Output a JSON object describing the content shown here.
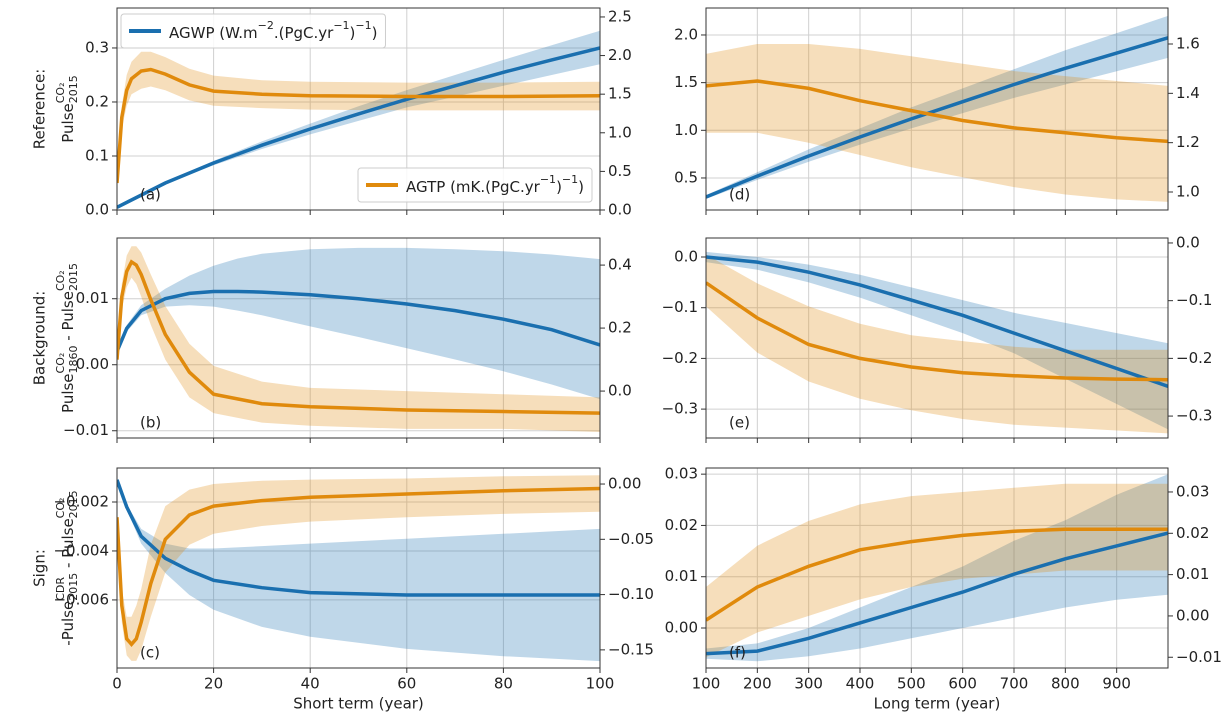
{
  "chart_data": [
    {
      "type": "line",
      "annotation": "(a)",
      "ylabel": {
        "line1": "Reference:",
        "line2": [
          {
            "text": "Pulse",
            "sup": "CO₂",
            "sub": "2015"
          }
        ]
      },
      "xlim": [
        0,
        100
      ],
      "xticks": [
        0,
        20,
        40,
        60,
        80,
        100
      ],
      "ylim": [
        0,
        0.374
      ],
      "yticks": [
        {
          "value": 0,
          "label": "0.0"
        },
        0.1,
        0.2,
        0.3
      ],
      "y2lim": [
        0,
        2.616
      ],
      "y2ticks": [
        {
          "value": 0,
          "label": "0.0"
        },
        0.5,
        {
          "value": 1,
          "label": "1.0"
        },
        1.5,
        {
          "value": 2,
          "label": "2.0"
        },
        2.5
      ],
      "grid": true,
      "series": [
        {
          "name": [
            {
              "text": "AGWP (W.m",
              "sup": "−2"
            },
            {
              "text": ".(PgC.yr",
              "sup": "−1"
            },
            {
              "text": ")",
              "sup": "−1"
            },
            {
              "text": ")"
            }
          ],
          "legend_loc": "upper left",
          "color": "#1a6faf",
          "x": [
            0,
            10,
            20,
            30,
            40,
            50,
            60,
            70,
            80,
            90,
            100
          ],
          "values": [
            0.005,
            0.05,
            0.087,
            0.12,
            0.15,
            0.178,
            0.205,
            0.23,
            0.255,
            0.278,
            0.3
          ],
          "lower": [
            0.005,
            0.048,
            0.083,
            0.113,
            0.14,
            0.165,
            0.19,
            0.21,
            0.23,
            0.25,
            0.27
          ],
          "upper": [
            0.005,
            0.052,
            0.091,
            0.127,
            0.16,
            0.192,
            0.222,
            0.25,
            0.278,
            0.305,
            0.332
          ]
        },
        {
          "name": [
            {
              "text": "AGTP (mK.(PgC.yr",
              "sup": "−1"
            },
            {
              "text": ")",
              "sup": "−1"
            },
            {
              "text": ")"
            }
          ],
          "legend_loc": "lower right",
          "color": "#e08a0c",
          "axis": "y2",
          "x": [
            0,
            1,
            2,
            3,
            5,
            7,
            10,
            15,
            20,
            30,
            40,
            60,
            80,
            100
          ],
          "values": [
            0.35,
            1.2,
            1.55,
            1.7,
            1.8,
            1.82,
            1.76,
            1.62,
            1.54,
            1.5,
            1.48,
            1.47,
            1.47,
            1.48
          ],
          "lower": [
            0.3,
            1.05,
            1.35,
            1.5,
            1.57,
            1.6,
            1.55,
            1.42,
            1.35,
            1.32,
            1.3,
            1.29,
            1.29,
            1.29
          ],
          "upper": [
            0.4,
            1.35,
            1.75,
            1.92,
            2.05,
            2.05,
            1.98,
            1.83,
            1.74,
            1.68,
            1.66,
            1.65,
            1.65,
            1.66
          ]
        }
      ]
    },
    {
      "type": "line",
      "annotation": "(b)",
      "ylabel": {
        "line1": "Background:",
        "line2": [
          {
            "text": "Pulse",
            "sup": "CO₂",
            "sub": "1860"
          },
          {
            "text": " - Pulse",
            "sup": "CO₂",
            "sub": "2015"
          }
        ]
      },
      "xlim": [
        0,
        100
      ],
      "xticks": [
        0,
        20,
        40,
        60,
        80,
        100
      ],
      "ylim": [
        -0.0111,
        0.0192
      ],
      "yticks": [
        {
          "value": -0.01,
          "label": "−0.01"
        },
        {
          "value": 0,
          "label": "0.00"
        },
        0.01
      ],
      "y2lim": [
        -0.149,
        0.486
      ],
      "y2ticks": [
        {
          "value": 0,
          "label": "0.0"
        },
        0.2,
        0.4
      ],
      "grid": true,
      "series": [
        {
          "color": "#1a6faf",
          "x": [
            0,
            2,
            5,
            10,
            15,
            20,
            25,
            30,
            40,
            50,
            60,
            70,
            80,
            90,
            100
          ],
          "values": [
            0.002,
            0.0055,
            0.0082,
            0.01,
            0.0108,
            0.0111,
            0.0111,
            0.011,
            0.0106,
            0.01,
            0.0092,
            0.0082,
            0.0069,
            0.0053,
            0.003
          ],
          "lower": [
            0.002,
            0.005,
            0.0075,
            0.0088,
            0.009,
            0.0088,
            0.0082,
            0.0075,
            0.0058,
            0.0042,
            0.0025,
            0.0008,
            -0.001,
            -0.003,
            -0.0052
          ],
          "upper": [
            0.002,
            0.006,
            0.009,
            0.0115,
            0.0135,
            0.015,
            0.0161,
            0.0168,
            0.0175,
            0.0177,
            0.0177,
            0.0175,
            0.0172,
            0.0167,
            0.016
          ]
        },
        {
          "color": "#e08a0c",
          "axis": "y2",
          "x": [
            0,
            1,
            2,
            3,
            4,
            5,
            7,
            10,
            15,
            20,
            30,
            40,
            60,
            80,
            100
          ],
          "values": [
            0.1,
            0.3,
            0.38,
            0.41,
            0.4,
            0.37,
            0.29,
            0.18,
            0.06,
            -0.01,
            -0.04,
            -0.05,
            -0.06,
            -0.065,
            -0.07
          ],
          "lower": [
            0.08,
            0.26,
            0.33,
            0.36,
            0.34,
            0.3,
            0.21,
            0.1,
            -0.02,
            -0.07,
            -0.1,
            -0.11,
            -0.12,
            -0.12,
            -0.13
          ],
          "upper": [
            0.12,
            0.34,
            0.43,
            0.46,
            0.46,
            0.44,
            0.37,
            0.27,
            0.15,
            0.08,
            0.03,
            0.01,
            0,
            -0.01,
            -0.02
          ]
        }
      ]
    },
    {
      "type": "line",
      "annotation": "(c)",
      "xlabel": "Short term (year)",
      "ylabel": {
        "line1": "Sign:",
        "line2": [
          {
            "text": "-Pulse",
            "sup": "CDR",
            "sub": "2015"
          },
          {
            "text": " - Pulse",
            "sup": "CO₂",
            "sub": "2015"
          }
        ]
      },
      "xlim": [
        0,
        100
      ],
      "xticks": [
        0,
        20,
        40,
        60,
        80,
        100
      ],
      "ylim": [
        -0.00878,
        -0.000612
      ],
      "yticks": [
        {
          "value": -0.006,
          "label": "−0.006"
        },
        {
          "value": -0.004,
          "label": "−0.004"
        },
        {
          "value": -0.002,
          "label": "−0.002"
        }
      ],
      "y2lim": [
        -0.1664,
        0.0145
      ],
      "y2ticks": [
        {
          "value": -0.15,
          "label": "−0.15"
        },
        {
          "value": -0.1,
          "label": "−0.10"
        },
        {
          "value": -0.05,
          "label": "−0.05"
        },
        {
          "value": 0,
          "label": "0.00"
        }
      ],
      "grid": true,
      "series": [
        {
          "color": "#1a6faf",
          "x": [
            0,
            2,
            5,
            10,
            15,
            20,
            30,
            40,
            60,
            80,
            100
          ],
          "values": [
            -0.0011,
            -0.0022,
            -0.0034,
            -0.0043,
            -0.0048,
            -0.0052,
            -0.0055,
            -0.0057,
            -0.0058,
            -0.0058,
            -0.0058
          ],
          "lower": [
            -0.0011,
            -0.0023,
            -0.0037,
            -0.0049,
            -0.0058,
            -0.0064,
            -0.0071,
            -0.0075,
            -0.008,
            -0.0083,
            -0.0085
          ],
          "upper": [
            -0.0011,
            -0.0021,
            -0.0031,
            -0.0037,
            -0.0039,
            -0.0039,
            -0.0038,
            -0.0037,
            -0.0035,
            -0.0033,
            -0.0031
          ]
        },
        {
          "color": "#e08a0c",
          "axis": "y2",
          "x": [
            0,
            1,
            2,
            3,
            4,
            5,
            7,
            10,
            15,
            20,
            30,
            40,
            60,
            80,
            100
          ],
          "values": [
            -0.03,
            -0.11,
            -0.14,
            -0.145,
            -0.14,
            -0.125,
            -0.09,
            -0.05,
            -0.028,
            -0.02,
            -0.015,
            -0.012,
            -0.009,
            -0.006,
            -0.004
          ],
          "lower": [
            -0.035,
            -0.125,
            -0.155,
            -0.16,
            -0.16,
            -0.15,
            -0.12,
            -0.08,
            -0.055,
            -0.045,
            -0.038,
            -0.034,
            -0.03,
            -0.027,
            -0.025
          ],
          "upper": [
            -0.025,
            -0.095,
            -0.12,
            -0.12,
            -0.11,
            -0.095,
            -0.055,
            -0.02,
            -0.005,
            0,
            0.003,
            0.004,
            0.005,
            0.007,
            0.008
          ]
        }
      ]
    },
    {
      "type": "line",
      "annotation": "(d)",
      "xlim": [
        100,
        1000
      ],
      "xticks": [
        100,
        200,
        300,
        400,
        500,
        600,
        700,
        800,
        900
      ],
      "ylim": [
        0.164,
        2.283
      ],
      "yticks": [
        0.5,
        {
          "value": 1,
          "label": "1.0"
        },
        1.5,
        {
          "value": 2,
          "label": "2.0"
        }
      ],
      "y2lim": [
        0.927,
        1.746
      ],
      "y2ticks": [
        {
          "value": 1,
          "label": "1.0"
        },
        1.2,
        1.4,
        1.6
      ],
      "grid": true,
      "series": [
        {
          "color": "#1a6faf",
          "x": [
            100,
            200,
            300,
            400,
            500,
            600,
            700,
            800,
            900,
            1000
          ],
          "values": [
            0.3,
            0.52,
            0.73,
            0.93,
            1.12,
            1.3,
            1.48,
            1.65,
            1.81,
            1.97
          ],
          "lower": [
            0.28,
            0.48,
            0.67,
            0.85,
            1.02,
            1.18,
            1.34,
            1.48,
            1.62,
            1.76
          ],
          "upper": [
            0.32,
            0.56,
            0.8,
            1.02,
            1.24,
            1.44,
            1.64,
            1.84,
            2.02,
            2.2
          ]
        },
        {
          "color": "#e08a0c",
          "axis": "y2",
          "x": [
            100,
            200,
            300,
            400,
            500,
            600,
            700,
            800,
            900,
            1000
          ],
          "values": [
            1.43,
            1.45,
            1.42,
            1.37,
            1.33,
            1.29,
            1.26,
            1.24,
            1.22,
            1.205
          ],
          "lower": [
            1.24,
            1.24,
            1.2,
            1.15,
            1.1,
            1.06,
            1.02,
            0.99,
            0.97,
            0.96
          ],
          "upper": [
            1.56,
            1.6,
            1.6,
            1.58,
            1.55,
            1.52,
            1.49,
            1.47,
            1.45,
            1.43
          ]
        }
      ]
    },
    {
      "type": "line",
      "annotation": "(e)",
      "xlim": [
        100,
        1000
      ],
      "xticks": [
        100,
        200,
        300,
        400,
        500,
        600,
        700,
        800,
        900
      ],
      "ylim": [
        -0.357,
        0.0375
      ],
      "yticks": [
        {
          "value": -0.3,
          "label": "−0.3"
        },
        {
          "value": -0.2,
          "label": "−0.2"
        },
        {
          "value": -0.1,
          "label": "−0.1"
        },
        {
          "value": 0,
          "label": "0.0"
        }
      ],
      "y2lim": [
        -0.338,
        0.0086
      ],
      "y2ticks": [
        {
          "value": -0.3,
          "label": "−0.3"
        },
        {
          "value": -0.2,
          "label": "−0.2"
        },
        {
          "value": -0.1,
          "label": "−0.1"
        },
        {
          "value": 0,
          "label": "0.0"
        }
      ],
      "grid": true,
      "series": [
        {
          "color": "#1a6faf",
          "x": [
            100,
            200,
            300,
            400,
            500,
            600,
            700,
            800,
            900,
            1000
          ],
          "values": [
            0,
            -0.01,
            -0.03,
            -0.055,
            -0.085,
            -0.115,
            -0.15,
            -0.185,
            -0.22,
            -0.255
          ],
          "lower": [
            -0.01,
            -0.025,
            -0.05,
            -0.08,
            -0.115,
            -0.15,
            -0.19,
            -0.24,
            -0.29,
            -0.34
          ],
          "upper": [
            0.01,
            0,
            -0.015,
            -0.035,
            -0.06,
            -0.085,
            -0.11,
            -0.13,
            -0.15,
            -0.17
          ]
        },
        {
          "color": "#e08a0c",
          "axis": "y2",
          "x": [
            100,
            200,
            300,
            400,
            500,
            600,
            700,
            800,
            900,
            1000
          ],
          "values": [
            -0.069,
            -0.13,
            -0.176,
            -0.2,
            -0.215,
            -0.225,
            -0.23,
            -0.234,
            -0.236,
            -0.237
          ],
          "lower": [
            -0.11,
            -0.19,
            -0.24,
            -0.27,
            -0.29,
            -0.305,
            -0.315,
            -0.32,
            -0.325,
            -0.33
          ],
          "upper": [
            -0.02,
            -0.07,
            -0.11,
            -0.14,
            -0.16,
            -0.17,
            -0.18,
            -0.185,
            -0.185,
            -0.185
          ]
        }
      ]
    },
    {
      "type": "line",
      "annotation": "(f)",
      "xlabel": "Long term (year)",
      "xlim": [
        100,
        1000
      ],
      "xticks": [
        100,
        200,
        300,
        400,
        500,
        600,
        700,
        800,
        900
      ],
      "ylim": [
        -0.0078,
        0.0312
      ],
      "yticks": [
        {
          "value": 0,
          "label": "0.00"
        },
        0.01,
        0.02,
        0.03
      ],
      "y2lim": [
        -0.0126,
        0.0358
      ],
      "y2ticks": [
        {
          "value": -0.01,
          "label": "−0.01"
        },
        {
          "value": 0,
          "label": "0.00"
        },
        0.01,
        0.02,
        0.03
      ],
      "grid": true,
      "series": [
        {
          "color": "#1a6faf",
          "x": [
            100,
            200,
            300,
            400,
            500,
            600,
            700,
            800,
            900,
            1000
          ],
          "values": [
            -0.005,
            -0.0045,
            -0.002,
            0.001,
            0.004,
            0.007,
            0.0105,
            0.0135,
            0.016,
            0.0185
          ],
          "lower": [
            -0.006,
            -0.0065,
            -0.0055,
            -0.004,
            -0.002,
            0,
            0.002,
            0.004,
            0.0055,
            0.0065
          ],
          "upper": [
            -0.004,
            -0.003,
            0,
            0.004,
            0.008,
            0.012,
            0.017,
            0.021,
            0.026,
            0.03
          ]
        },
        {
          "color": "#e08a0c",
          "axis": "y2",
          "x": [
            100,
            200,
            300,
            400,
            500,
            600,
            700,
            800,
            900,
            1000
          ],
          "values": [
            -0.001,
            0.007,
            0.012,
            0.016,
            0.018,
            0.0195,
            0.0205,
            0.021,
            0.021,
            0.021
          ],
          "lower": [
            -0.01,
            -0.004,
            0,
            0.004,
            0.007,
            0.009,
            0.01,
            0.011,
            0.011,
            0.011
          ],
          "upper": [
            0.007,
            0.017,
            0.023,
            0.027,
            0.029,
            0.03,
            0.031,
            0.032,
            0.032,
            0.032
          ]
        }
      ]
    }
  ]
}
